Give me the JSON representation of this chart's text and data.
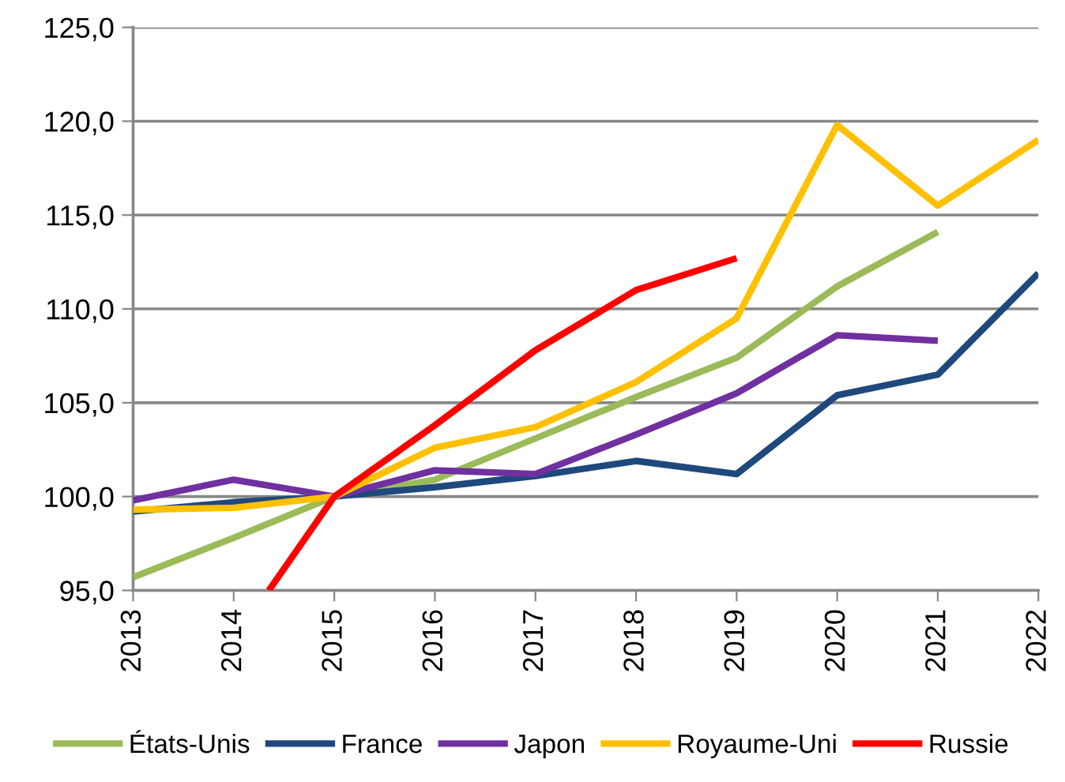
{
  "chart_data": {
    "type": "line",
    "x": [
      2013,
      2014,
      2015,
      2016,
      2017,
      2018,
      2019,
      2020,
      2021,
      2022
    ],
    "series": [
      {
        "name": "États-Unis",
        "color": "#9bbb59",
        "values": [
          95.7,
          97.8,
          100,
          100.9,
          103.1,
          105.3,
          107.4,
          111.2,
          114.1,
          null
        ]
      },
      {
        "name": "France",
        "color": "#1f497d",
        "values": [
          99.2,
          99.7,
          100,
          100.5,
          101.1,
          101.9,
          101.2,
          105.4,
          106.5,
          111.9
        ]
      },
      {
        "name": "Japon",
        "color": "#7030a0",
        "values": [
          99.8,
          100.9,
          100,
          101.4,
          101.2,
          103.3,
          105.5,
          108.6,
          108.3,
          null
        ]
      },
      {
        "name": "Royaume-Uni",
        "color": "#ffc000",
        "values": [
          99.3,
          99.4,
          100,
          102.6,
          103.7,
          106.1,
          109.5,
          119.8,
          115.5,
          119.0
        ]
      },
      {
        "name": "Russie",
        "color": "#ff0000",
        "x": [
          2014.35,
          2015,
          2016,
          2017,
          2018,
          2019
        ],
        "values": [
          95.0,
          100,
          103.8,
          107.8,
          111.0,
          112.7
        ]
      }
    ],
    "xlim": [
      2013,
      2022
    ],
    "xticks": [
      2013,
      2014,
      2015,
      2016,
      2017,
      2018,
      2019,
      2020,
      2021,
      2022
    ],
    "ylim": [
      95,
      125
    ],
    "yticks": [
      {
        "value": 95,
        "label": "95,0"
      },
      {
        "value": 100,
        "label": "100,0"
      },
      {
        "value": 105,
        "label": "105,0"
      },
      {
        "value": 110,
        "label": "110,0"
      },
      {
        "value": 115,
        "label": "115,0"
      },
      {
        "value": 120,
        "label": "120,0"
      },
      {
        "value": 125,
        "label": "125,0"
      }
    ],
    "grid": "y",
    "legend": "bottom",
    "marker": "none",
    "line_style": "solid"
  }
}
